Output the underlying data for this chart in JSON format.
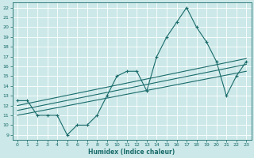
{
  "xlabel": "Humidex (Indice chaleur)",
  "ylabel": "",
  "bg_color": "#cce8e8",
  "line_color": "#1a6b6b",
  "xlim": [
    -0.5,
    23.5
  ],
  "ylim": [
    8.5,
    22.5
  ],
  "xticks": [
    0,
    1,
    2,
    3,
    4,
    5,
    6,
    7,
    8,
    9,
    10,
    11,
    12,
    13,
    14,
    15,
    16,
    17,
    18,
    19,
    20,
    21,
    22,
    23
  ],
  "yticks": [
    9,
    10,
    11,
    12,
    13,
    14,
    15,
    16,
    17,
    18,
    19,
    20,
    21,
    22
  ],
  "curve_x": [
    0,
    1,
    2,
    3,
    4,
    5,
    6,
    7,
    8,
    9,
    10,
    11,
    12,
    13,
    14,
    15,
    16,
    17,
    18,
    19,
    20,
    21,
    22,
    23
  ],
  "curve_y": [
    12.5,
    12.5,
    11.0,
    11.0,
    11.0,
    9.0,
    10.0,
    10.0,
    11.0,
    13.0,
    15.0,
    15.5,
    15.5,
    13.5,
    17.0,
    19.0,
    20.5,
    22.0,
    20.0,
    18.5,
    16.5,
    13.0,
    15.0,
    16.5
  ],
  "reg_line1_x": [
    0,
    23
  ],
  "reg_line1_y": [
    12.0,
    16.8
  ],
  "reg_line2_x": [
    0,
    23
  ],
  "reg_line2_y": [
    11.5,
    16.2
  ],
  "reg_line3_x": [
    0,
    23
  ],
  "reg_line3_y": [
    11.0,
    15.5
  ]
}
